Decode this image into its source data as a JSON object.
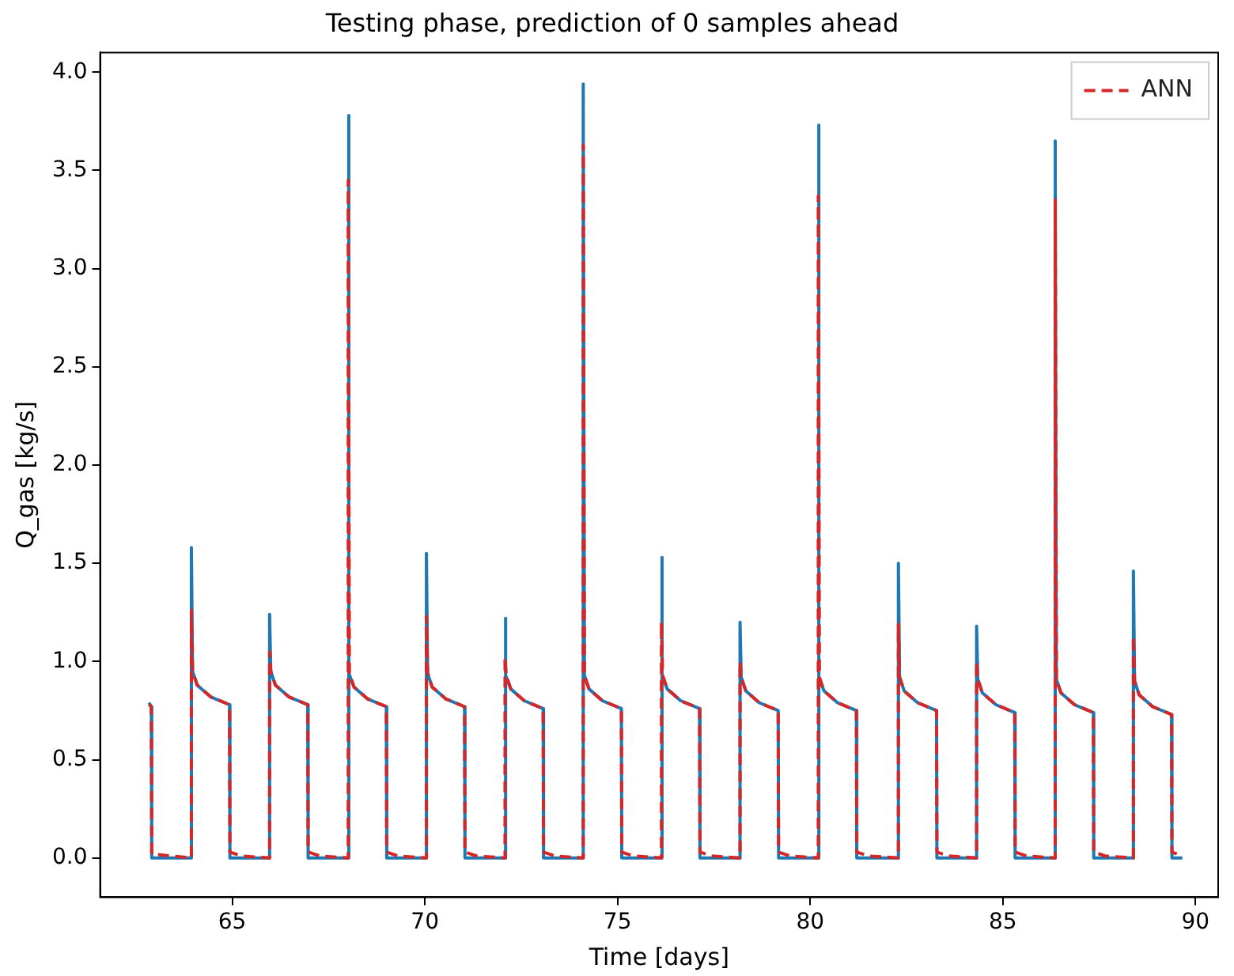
{
  "chart_data": {
    "type": "line",
    "title": "Testing phase, prediction of 0 samples ahead",
    "xlabel": "Time [days]",
    "ylabel": "Q_gas [kg/s]",
    "x": [
      62.84,
      62.9,
      62.91,
      63.94,
      63.94,
      63.97,
      64.09,
      64.44,
      64.93,
      64.94,
      65.24,
      65.97,
      65.97,
      66.0,
      66.12,
      66.47,
      66.96,
      66.97,
      67.27,
      68.01,
      68.01,
      68.04,
      68.16,
      68.51,
      69.0,
      69.01,
      69.31,
      70.04,
      70.04,
      70.07,
      70.19,
      70.54,
      71.03,
      71.04,
      71.34,
      72.08,
      72.08,
      72.11,
      72.23,
      72.58,
      73.07,
      73.08,
      73.38,
      74.11,
      74.11,
      74.14,
      74.26,
      74.61,
      75.1,
      75.11,
      75.41,
      76.14,
      76.14,
      76.17,
      76.29,
      76.64,
      77.13,
      77.14,
      77.44,
      78.18,
      78.18,
      78.21,
      78.33,
      78.68,
      79.17,
      79.18,
      79.48,
      80.21,
      80.21,
      80.24,
      80.36,
      80.71,
      81.2,
      81.21,
      81.51,
      82.29,
      82.29,
      82.32,
      82.44,
      82.79,
      83.28,
      83.29,
      83.59,
      84.32,
      84.32,
      84.35,
      84.47,
      84.82,
      85.31,
      85.32,
      85.62,
      86.36,
      86.36,
      86.39,
      86.51,
      86.86,
      87.35,
      87.36,
      87.66,
      88.39,
      88.39,
      88.42,
      88.54,
      88.89,
      89.38,
      89.39,
      89.66
    ],
    "series": [
      {
        "color": "#1f77b4",
        "line_style": "solid",
        "values": [
          0.79,
          0.77,
          0,
          0,
          1.58,
          0.95,
          0.88,
          0.82,
          0.78,
          0,
          0,
          0,
          1.24,
          0.95,
          0.88,
          0.82,
          0.78,
          0,
          0,
          0,
          3.78,
          0.94,
          0.87,
          0.81,
          0.77,
          0,
          0,
          0,
          1.55,
          0.94,
          0.87,
          0.81,
          0.77,
          0,
          0,
          0,
          1.22,
          0.93,
          0.86,
          0.8,
          0.76,
          0,
          0,
          0,
          3.94,
          0.93,
          0.86,
          0.8,
          0.76,
          0,
          0,
          0,
          1.53,
          0.93,
          0.86,
          0.8,
          0.76,
          0,
          0,
          0,
          1.2,
          0.92,
          0.85,
          0.79,
          0.75,
          0,
          0,
          0,
          3.73,
          0.92,
          0.85,
          0.79,
          0.75,
          0,
          0,
          0,
          1.5,
          0.92,
          0.85,
          0.79,
          0.75,
          0,
          0,
          0,
          1.18,
          0.91,
          0.84,
          0.78,
          0.74,
          0,
          0,
          0,
          3.65,
          0.91,
          0.84,
          0.78,
          0.74,
          0,
          0,
          0,
          1.46,
          0.9,
          0.83,
          0.77,
          0.73,
          0,
          0
        ]
      },
      {
        "name": "ANN",
        "color": "#d62728",
        "line_style": "dashed",
        "values": [
          0.78,
          0.77,
          0.02,
          0,
          1.26,
          0.95,
          0.88,
          0.82,
          0.78,
          0.03,
          0.01,
          0,
          1.05,
          0.95,
          0.88,
          0.82,
          0.78,
          0.03,
          0.01,
          0,
          3.45,
          0.94,
          0.87,
          0.81,
          0.77,
          0.03,
          0.01,
          0,
          1.23,
          0.94,
          0.87,
          0.81,
          0.77,
          0.03,
          0.01,
          0,
          1.02,
          0.93,
          0.86,
          0.8,
          0.76,
          0.03,
          0.01,
          0,
          3.63,
          0.93,
          0.86,
          0.8,
          0.76,
          0.03,
          0.01,
          0,
          1.2,
          0.93,
          0.86,
          0.8,
          0.76,
          0.03,
          0.01,
          0,
          1.0,
          0.92,
          0.85,
          0.79,
          0.75,
          0.03,
          0.01,
          0,
          3.37,
          0.92,
          0.85,
          0.79,
          0.75,
          0.03,
          0.01,
          0,
          1.19,
          0.92,
          0.85,
          0.79,
          0.75,
          0.03,
          0.01,
          0,
          1.0,
          0.91,
          0.84,
          0.78,
          0.74,
          0.03,
          0.01,
          0,
          3.35,
          0.91,
          0.84,
          0.78,
          0.74,
          0.03,
          0.01,
          0,
          1.13,
          0.9,
          0.83,
          0.77,
          0.73,
          0.03,
          0.01
        ]
      }
    ],
    "xlim": [
      61.57,
      90.59
    ],
    "xticks": [
      65,
      70,
      75,
      80,
      85,
      90
    ],
    "ylim": [
      -0.2,
      4.1
    ],
    "yticks": [
      {
        "value": 0,
        "label": "0.0"
      },
      {
        "value": 0.5,
        "label": "0.5"
      },
      {
        "value": 1,
        "label": "1.0"
      },
      {
        "value": 1.5,
        "label": "1.5"
      },
      {
        "value": 2,
        "label": "2.0"
      },
      {
        "value": 2.5,
        "label": "2.5"
      },
      {
        "value": 3,
        "label": "3.0"
      },
      {
        "value": 3.5,
        "label": "3.5"
      },
      {
        "value": 4,
        "label": "4.0"
      }
    ],
    "grid": false,
    "legend": "top right",
    "marker": "none"
  }
}
